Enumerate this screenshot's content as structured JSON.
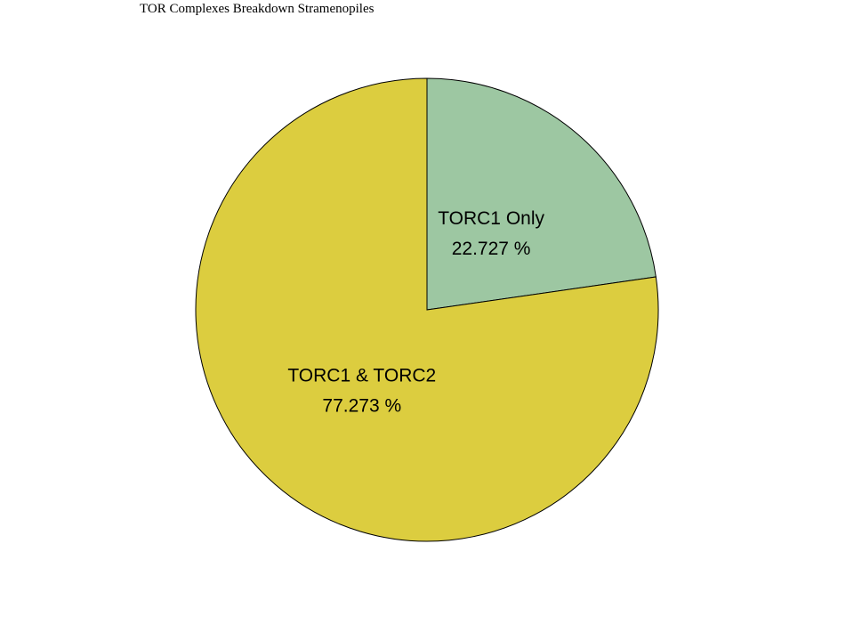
{
  "chart_data": {
    "type": "pie",
    "title": "TOR Complexes Breakdown Stramenopiles",
    "slices": [
      {
        "label": "TORC1 Only",
        "value": 22.727,
        "value_text": "22.727 %",
        "color": "#9dc7a2"
      },
      {
        "label": "TORC1 & TORC2",
        "value": 77.273,
        "value_text": "77.273 %",
        "color": "#dccd3f"
      }
    ]
  }
}
